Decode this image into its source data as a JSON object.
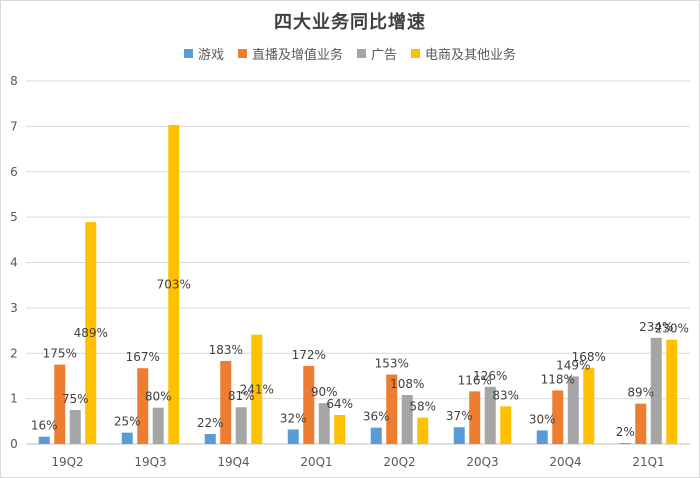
{
  "chart_data": {
    "type": "bar",
    "title": "四大业务同比增速",
    "categories": [
      "19Q2",
      "19Q3",
      "19Q4",
      "20Q1",
      "20Q2",
      "20Q3",
      "20Q4",
      "21Q1"
    ],
    "ylim": [
      0,
      8
    ],
    "yticks": [
      "0",
      "1",
      "2",
      "3",
      "4",
      "5",
      "6",
      "7",
      "8"
    ],
    "grid": true,
    "legend_position": "top",
    "series": [
      {
        "name": "游戏",
        "color": "#5B9BD5",
        "values": [
          0.16,
          0.25,
          0.22,
          0.32,
          0.36,
          0.37,
          0.3,
          0.02
        ],
        "labels": [
          "16%",
          "25%",
          "22%",
          "32%",
          "36%",
          "37%",
          "30%",
          "2%"
        ]
      },
      {
        "name": "直播及增值业务",
        "color": "#ED7D31",
        "values": [
          1.75,
          1.67,
          1.83,
          1.72,
          1.53,
          1.16,
          1.18,
          0.89
        ],
        "labels": [
          "175%",
          "167%",
          "183%",
          "172%",
          "153%",
          "116%",
          "118%",
          "89%"
        ]
      },
      {
        "name": "广告",
        "color": "#A5A5A5",
        "values": [
          0.75,
          0.8,
          0.81,
          0.9,
          1.08,
          1.26,
          1.49,
          2.34
        ],
        "labels": [
          "75%",
          "80%",
          "81%",
          "90%",
          "108%",
          "126%",
          "149%",
          "234%"
        ]
      },
      {
        "name": "电商及其他业务",
        "color": "#FFC000",
        "values": [
          4.89,
          7.03,
          2.41,
          0.64,
          0.58,
          0.83,
          1.68,
          2.3
        ],
        "labels": [
          "489%",
          "703%",
          "241%",
          "64%",
          "58%",
          "83%",
          "168%",
          "230%"
        ]
      }
    ]
  }
}
